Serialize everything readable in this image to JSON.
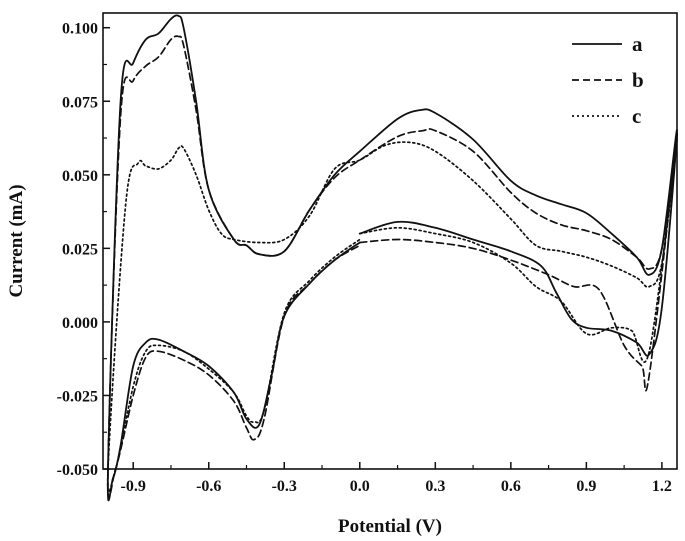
{
  "chart_data": {
    "type": "line",
    "xlabel": "Potential (V)",
    "ylabel": "Current (mA)",
    "xlim": [
      -1.02,
      1.26
    ],
    "ylim": [
      -0.05,
      0.105
    ],
    "x_ticks": [
      -0.9,
      -0.6,
      -0.3,
      0.0,
      0.3,
      0.6,
      0.9,
      1.2
    ],
    "x_tick_labels": [
      "-0.9",
      "-0.6",
      "-0.3",
      "0.0",
      "0.3",
      "0.6",
      "0.9",
      "1.2"
    ],
    "y_ticks": [
      -0.05,
      -0.025,
      0.0,
      0.025,
      0.05,
      0.075,
      0.1
    ],
    "y_tick_labels": [
      "-0.050",
      "-0.025",
      "0.000",
      "0.025",
      "0.050",
      "0.075",
      "0.100"
    ],
    "grid": false,
    "legend_position": "top-right",
    "series": [
      {
        "name": "a",
        "dash": "solid",
        "color": "#111111",
        "x": [
          0.0,
          0.15,
          0.3,
          0.45,
          0.6,
          0.72,
          0.78,
          0.84,
          0.9,
          1.0,
          1.1,
          1.15,
          1.2,
          1.26,
          1.2,
          1.15,
          1.1,
          1.0,
          0.9,
          0.8,
          0.7,
          0.6,
          0.45,
          0.3,
          0.24,
          0.15,
          0.0,
          -0.1,
          -0.2,
          -0.3,
          -0.4,
          -0.45,
          -0.5,
          -0.6,
          -0.65,
          -0.7,
          -0.72,
          -0.75,
          -0.8,
          -0.85,
          -0.9,
          -0.95,
          -1.0,
          -0.98,
          -0.95,
          -0.9,
          -0.85,
          -0.8,
          -0.7,
          -0.6,
          -0.5,
          -0.45,
          -0.4,
          -0.35,
          -0.3,
          -0.2,
          -0.1,
          0.0
        ],
        "y": [
          0.03,
          0.034,
          0.032,
          0.028,
          0.024,
          0.019,
          0.01,
          0.001,
          -0.002,
          -0.003,
          -0.007,
          -0.011,
          0.005,
          0.065,
          0.025,
          0.016,
          0.022,
          0.03,
          0.037,
          0.04,
          0.043,
          0.048,
          0.062,
          0.071,
          0.072,
          0.069,
          0.058,
          0.05,
          0.038,
          0.024,
          0.023,
          0.026,
          0.028,
          0.045,
          0.075,
          0.1,
          0.104,
          0.103,
          0.098,
          0.096,
          0.088,
          0.075,
          -0.05,
          -0.053,
          -0.042,
          -0.015,
          -0.007,
          -0.006,
          -0.01,
          -0.015,
          -0.024,
          -0.033,
          -0.035,
          -0.018,
          0.002,
          0.013,
          0.021,
          0.027
        ]
      },
      {
        "name": "b",
        "dash": "dashed",
        "color": "#111111",
        "x": [
          0.0,
          0.15,
          0.3,
          0.45,
          0.6,
          0.75,
          0.85,
          0.95,
          1.05,
          1.12,
          1.15,
          1.26,
          1.2,
          1.15,
          1.1,
          1.0,
          0.9,
          0.8,
          0.7,
          0.6,
          0.45,
          0.3,
          0.25,
          0.15,
          0.0,
          -0.1,
          -0.2,
          -0.3,
          -0.4,
          -0.45,
          -0.5,
          -0.6,
          -0.65,
          -0.7,
          -0.72,
          -0.75,
          -0.8,
          -0.85,
          -0.9,
          -0.95,
          -1.0,
          -0.97,
          -0.9,
          -0.85,
          -0.8,
          -0.7,
          -0.6,
          -0.5,
          -0.45,
          -0.42,
          -0.38,
          -0.3,
          -0.2,
          -0.1,
          0.0
        ],
        "y": [
          0.027,
          0.028,
          0.027,
          0.025,
          0.021,
          0.016,
          0.012,
          0.011,
          -0.008,
          -0.015,
          -0.018,
          0.063,
          0.025,
          0.018,
          0.022,
          0.028,
          0.031,
          0.033,
          0.037,
          0.044,
          0.058,
          0.065,
          0.065,
          0.063,
          0.055,
          0.049,
          0.038,
          0.024,
          0.023,
          0.026,
          0.028,
          0.045,
          0.072,
          0.094,
          0.097,
          0.096,
          0.09,
          0.087,
          0.082,
          0.07,
          -0.05,
          -0.05,
          -0.025,
          -0.012,
          -0.01,
          -0.013,
          -0.018,
          -0.027,
          -0.036,
          -0.04,
          -0.033,
          0.002,
          0.013,
          0.021,
          0.026
        ]
      },
      {
        "name": "c",
        "dash": "dotted",
        "color": "#111111",
        "x": [
          0.0,
          0.15,
          0.3,
          0.45,
          0.6,
          0.7,
          0.8,
          0.9,
          1.0,
          1.08,
          1.15,
          1.26,
          1.2,
          1.15,
          1.1,
          1.0,
          0.9,
          0.8,
          0.7,
          0.6,
          0.45,
          0.3,
          0.2,
          0.1,
          0.0,
          -0.1,
          -0.2,
          -0.3,
          -0.4,
          -0.5,
          -0.55,
          -0.6,
          -0.65,
          -0.7,
          -0.72,
          -0.75,
          -0.8,
          -0.85,
          -0.88,
          -0.93,
          -1.0,
          -0.97,
          -0.9,
          -0.85,
          -0.8,
          -0.7,
          -0.6,
          -0.5,
          -0.45,
          -0.42,
          -0.38,
          -0.3,
          -0.2,
          -0.1,
          0.0
        ],
        "y": [
          0.03,
          0.032,
          0.03,
          0.027,
          0.02,
          0.012,
          0.007,
          -0.004,
          -0.002,
          -0.003,
          -0.01,
          0.062,
          0.02,
          0.012,
          0.015,
          0.019,
          0.022,
          0.024,
          0.026,
          0.035,
          0.048,
          0.058,
          0.061,
          0.06,
          0.055,
          0.052,
          0.036,
          0.028,
          0.027,
          0.028,
          0.03,
          0.038,
          0.05,
          0.059,
          0.059,
          0.055,
          0.052,
          0.053,
          0.054,
          0.04,
          -0.05,
          -0.05,
          -0.022,
          -0.01,
          -0.008,
          -0.01,
          -0.016,
          -0.024,
          -0.032,
          -0.034,
          -0.03,
          0.003,
          0.014,
          0.022,
          0.028
        ]
      }
    ]
  }
}
